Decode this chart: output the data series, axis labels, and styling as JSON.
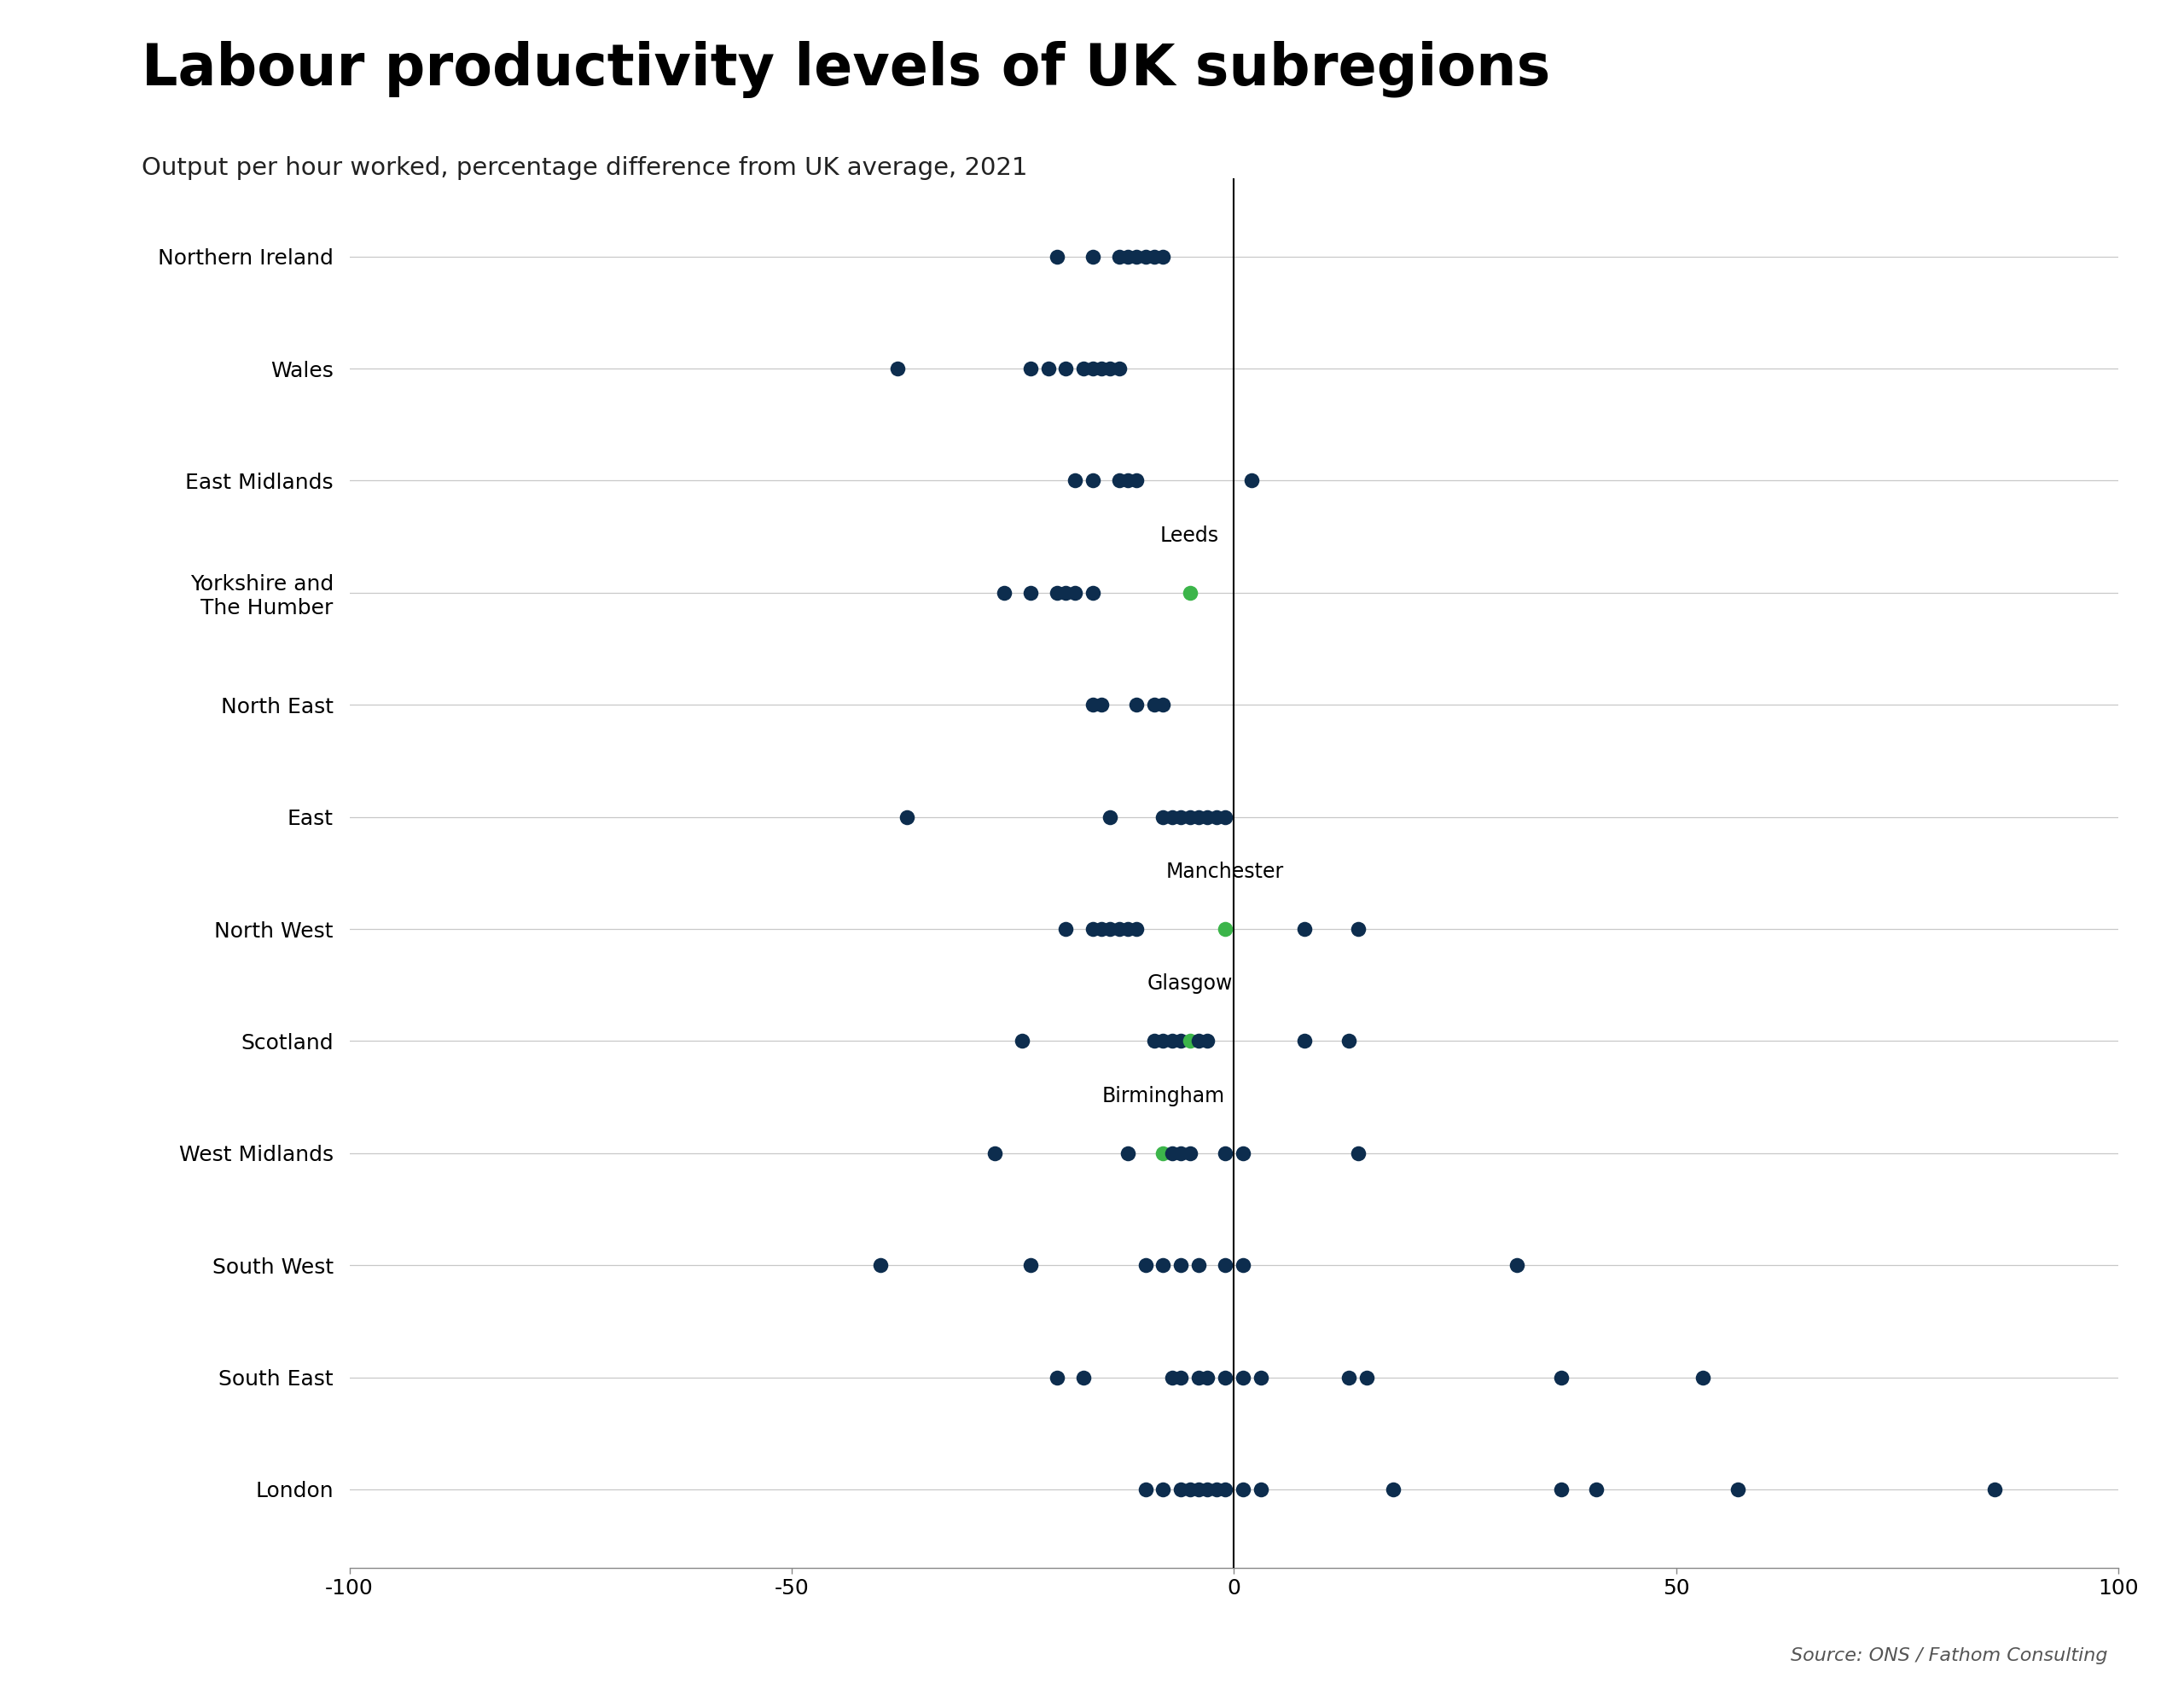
{
  "title": "Labour productivity levels of UK subregions",
  "subtitle": "Output per hour worked, percentage difference from UK average, 2021",
  "source": "Source: ONS / Fathom Consulting",
  "dot_color": "#0d2d4e",
  "highlight_color": "#3cb54a",
  "ordered_regions": [
    "Northern Ireland",
    "Wales",
    "East Midlands",
    "Yorkshire and\nThe Humber",
    "North East",
    "East",
    "North West",
    "Scotland",
    "West Midlands",
    "South West",
    "South East",
    "London"
  ],
  "region_data": {
    "Northern Ireland": {
      "values": [
        -20,
        -16,
        -13,
        -12,
        -11,
        -10,
        -9,
        -8
      ],
      "highlight_val": null,
      "highlight_label": null
    },
    "Wales": {
      "values": [
        -38,
        -23,
        -21,
        -19,
        -17,
        -16,
        -15,
        -14,
        -13
      ],
      "highlight_val": null,
      "highlight_label": null
    },
    "East Midlands": {
      "values": [
        -18,
        -16,
        -13,
        -12,
        -11,
        2
      ],
      "highlight_val": null,
      "highlight_label": null
    },
    "Yorkshire and\nThe Humber": {
      "values": [
        -26,
        -23,
        -20,
        -19,
        -18,
        -16,
        -5
      ],
      "highlight_val": -5,
      "highlight_label": "Leeds"
    },
    "North East": {
      "values": [
        -16,
        -15,
        -11,
        -9,
        -8
      ],
      "highlight_val": null,
      "highlight_label": null
    },
    "East": {
      "values": [
        -37,
        -14,
        -8,
        -7,
        -6,
        -5,
        -4,
        -3,
        -2,
        -1
      ],
      "highlight_val": null,
      "highlight_label": null
    },
    "North West": {
      "values": [
        -19,
        -16,
        -15,
        -14,
        -13,
        -12,
        -11,
        -1,
        8,
        14
      ],
      "highlight_val": -1,
      "highlight_label": "Manchester"
    },
    "Scotland": {
      "values": [
        -24,
        -9,
        -8,
        -7,
        -6,
        -5,
        -4,
        -3,
        8,
        13
      ],
      "highlight_val": -5,
      "highlight_label": "Glasgow"
    },
    "West Midlands": {
      "values": [
        -27,
        -12,
        -8,
        -7,
        -6,
        -5,
        -1,
        1,
        14
      ],
      "highlight_val": -8,
      "highlight_label": "Birmingham"
    },
    "South West": {
      "values": [
        -40,
        -23,
        -10,
        -8,
        -6,
        -4,
        -1,
        1,
        32
      ],
      "highlight_val": null,
      "highlight_label": null
    },
    "South East": {
      "values": [
        -20,
        -17,
        -7,
        -6,
        -4,
        -3,
        -1,
        1,
        3,
        13,
        15,
        37,
        53
      ],
      "highlight_val": null,
      "highlight_label": null
    },
    "London": {
      "values": [
        -10,
        -8,
        -6,
        -5,
        -4,
        -3,
        -2,
        -1,
        1,
        3,
        18,
        37,
        41,
        57,
        86
      ],
      "highlight_val": null,
      "highlight_label": null
    }
  }
}
